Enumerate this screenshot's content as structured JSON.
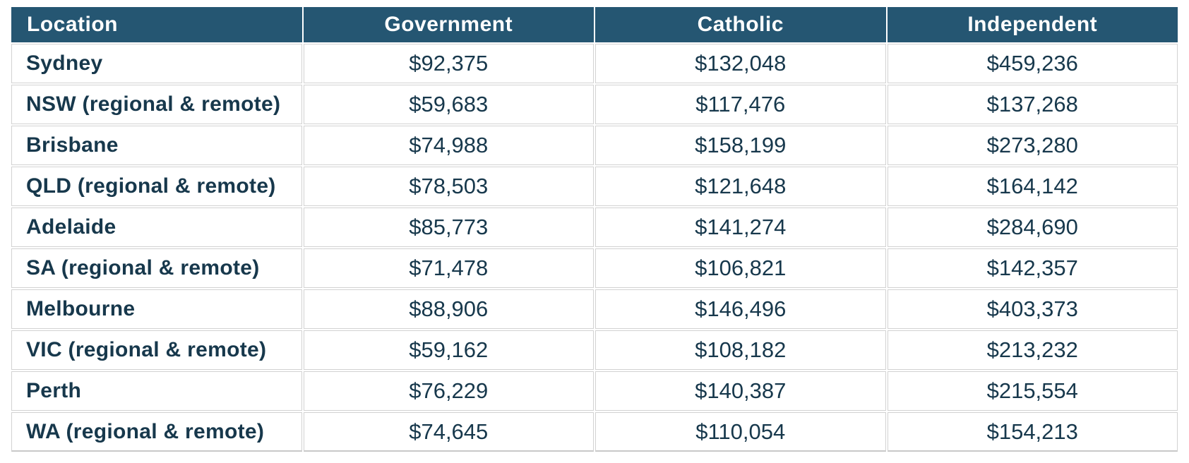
{
  "table": {
    "columns": [
      "Location",
      "Government",
      "Catholic",
      "Independent"
    ],
    "rows": [
      [
        "Sydney",
        "$92,375",
        "$132,048",
        "$459,236"
      ],
      [
        "NSW (regional & remote)",
        "$59,683",
        "$117,476",
        "$137,268"
      ],
      [
        "Brisbane",
        "$74,988",
        "$158,199",
        "$273,280"
      ],
      [
        "QLD (regional & remote)",
        "$78,503",
        "$121,648",
        "$164,142"
      ],
      [
        "Adelaide",
        "$85,773",
        "$141,274",
        "$284,690"
      ],
      [
        "SA (regional & remote)",
        "$71,478",
        "$106,821",
        "$142,357"
      ],
      [
        "Melbourne",
        "$88,906",
        "$146,496",
        "$403,373"
      ],
      [
        "VIC (regional & remote)",
        "$59,162",
        "$108,182",
        "$213,232"
      ],
      [
        "Perth",
        "$76,229",
        "$140,387",
        "$215,554"
      ],
      [
        "WA (regional & remote)",
        "$74,645",
        "$110,054",
        "$154,213"
      ]
    ]
  },
  "colors": {
    "header_background": "#255672",
    "header_text": "#ffffff",
    "body_text": "#17384c",
    "cell_border": "#d2d2d2",
    "row_background": "#ffffff"
  },
  "chart_data": {
    "type": "table",
    "title": "",
    "columns": [
      "Location",
      "Government",
      "Catholic",
      "Independent"
    ],
    "rows": [
      {
        "location": "Sydney",
        "government": 92375,
        "catholic": 132048,
        "independent": 459236
      },
      {
        "location": "NSW (regional & remote)",
        "government": 59683,
        "catholic": 117476,
        "independent": 137268
      },
      {
        "location": "Brisbane",
        "government": 74988,
        "catholic": 158199,
        "independent": 273280
      },
      {
        "location": "QLD (regional & remote)",
        "government": 78503,
        "catholic": 121648,
        "independent": 164142
      },
      {
        "location": "Adelaide",
        "government": 85773,
        "catholic": 141274,
        "independent": 284690
      },
      {
        "location": "SA (regional & remote)",
        "government": 71478,
        "catholic": 106821,
        "independent": 142357
      },
      {
        "location": "Melbourne",
        "government": 88906,
        "catholic": 146496,
        "independent": 403373
      },
      {
        "location": "VIC (regional & remote)",
        "government": 59162,
        "catholic": 108182,
        "independent": 213232
      },
      {
        "location": "Perth",
        "government": 76229,
        "catholic": 140387,
        "independent": 215554
      },
      {
        "location": "WA (regional & remote)",
        "government": 74645,
        "catholic": 110054,
        "independent": 154213
      }
    ],
    "value_format": "currency",
    "currency_symbol": "$"
  }
}
